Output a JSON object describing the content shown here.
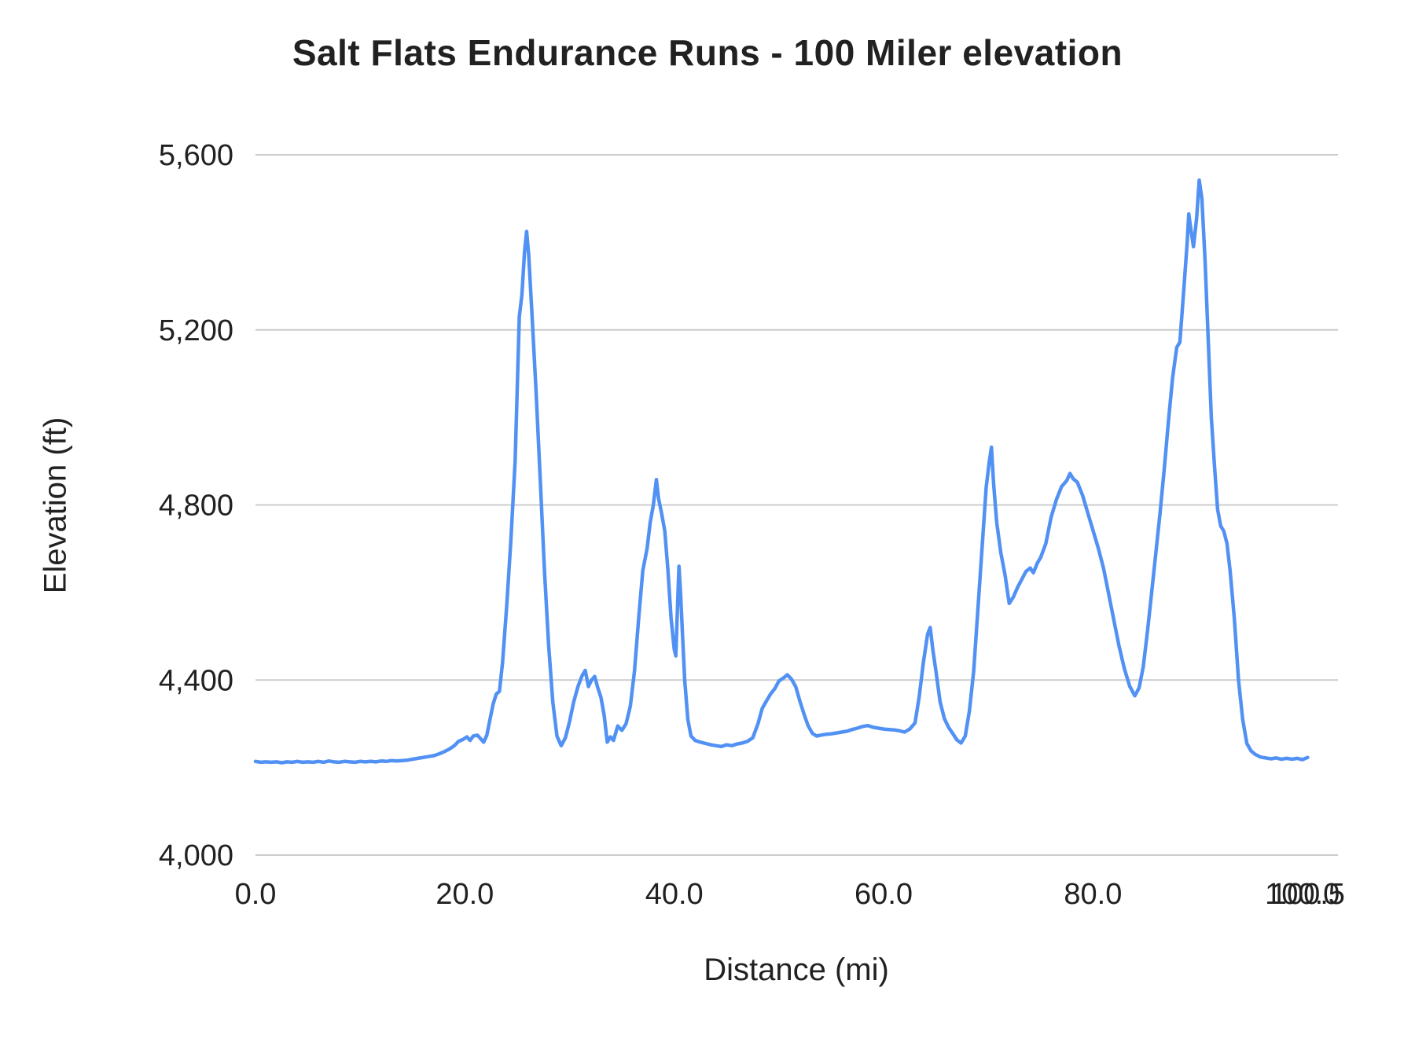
{
  "chart_data": {
    "type": "line",
    "title": "Salt Flats Endurance Runs - 100 Miler elevation",
    "xlabel": "Distance (mi)",
    "ylabel": "Elevation (ft)",
    "xlim": [
      0,
      103.4
    ],
    "ylim": [
      4000,
      5600
    ],
    "grid": "horizontal",
    "legend": "none",
    "line_color": "#5291f4",
    "gridline_color": "#cccccc",
    "text_color": "#212121",
    "x_ticks": [
      {
        "value": 0,
        "label": "0.0"
      },
      {
        "value": 20,
        "label": "20.0"
      },
      {
        "value": 40,
        "label": "40.0"
      },
      {
        "value": 60,
        "label": "60.0"
      },
      {
        "value": 80,
        "label": "80.0"
      },
      {
        "value": 100,
        "label": "100.0"
      },
      {
        "value": 100.5,
        "label": "100.5"
      }
    ],
    "y_ticks": [
      {
        "value": 4000,
        "label": "4,000"
      },
      {
        "value": 4400,
        "label": "4,400"
      },
      {
        "value": 4800,
        "label": "4,800"
      },
      {
        "value": 5200,
        "label": "5,200"
      },
      {
        "value": 5600,
        "label": "5,600"
      }
    ],
    "series": [
      {
        "points": [
          [
            0,
            4214
          ],
          [
            0.5,
            4212
          ],
          [
            1,
            4213
          ],
          [
            1.5,
            4212
          ],
          [
            2,
            4213
          ],
          [
            2.5,
            4211
          ],
          [
            3,
            4213
          ],
          [
            3.5,
            4212
          ],
          [
            4,
            4214
          ],
          [
            4.5,
            4212
          ],
          [
            5,
            4213
          ],
          [
            5.5,
            4212
          ],
          [
            6,
            4214
          ],
          [
            6.5,
            4212
          ],
          [
            7,
            4215
          ],
          [
            7.5,
            4213
          ],
          [
            8,
            4212
          ],
          [
            8.5,
            4214
          ],
          [
            9,
            4213
          ],
          [
            9.5,
            4212
          ],
          [
            10,
            4214
          ],
          [
            10.5,
            4213
          ],
          [
            11,
            4214
          ],
          [
            11.5,
            4213
          ],
          [
            12,
            4215
          ],
          [
            12.5,
            4214
          ],
          [
            13,
            4216
          ],
          [
            13.5,
            4215
          ],
          [
            14,
            4216
          ],
          [
            14.5,
            4217
          ],
          [
            15,
            4219
          ],
          [
            15.5,
            4221
          ],
          [
            16,
            4223
          ],
          [
            16.5,
            4225
          ],
          [
            17,
            4227
          ],
          [
            17.5,
            4231
          ],
          [
            18,
            4236
          ],
          [
            18.5,
            4242
          ],
          [
            19,
            4250
          ],
          [
            19.4,
            4260
          ],
          [
            19.8,
            4264
          ],
          [
            20.2,
            4270
          ],
          [
            20.5,
            4262
          ],
          [
            20.8,
            4272
          ],
          [
            21.2,
            4274
          ],
          [
            21.5,
            4266
          ],
          [
            21.8,
            4258
          ],
          [
            22.1,
            4274
          ],
          [
            22.4,
            4310
          ],
          [
            22.7,
            4345
          ],
          [
            23,
            4368
          ],
          [
            23.3,
            4374
          ],
          [
            23.6,
            4440
          ],
          [
            24,
            4570
          ],
          [
            24.4,
            4720
          ],
          [
            24.8,
            4900
          ],
          [
            25.2,
            5230
          ],
          [
            25.45,
            5280
          ],
          [
            25.7,
            5380
          ],
          [
            25.9,
            5425
          ],
          [
            26.1,
            5370
          ],
          [
            26.4,
            5240
          ],
          [
            26.8,
            5060
          ],
          [
            27.2,
            4860
          ],
          [
            27.6,
            4650
          ],
          [
            28,
            4480
          ],
          [
            28.4,
            4350
          ],
          [
            28.8,
            4272
          ],
          [
            29.2,
            4250
          ],
          [
            29.6,
            4268
          ],
          [
            30,
            4305
          ],
          [
            30.4,
            4350
          ],
          [
            30.8,
            4385
          ],
          [
            31.2,
            4410
          ],
          [
            31.5,
            4422
          ],
          [
            31.8,
            4385
          ],
          [
            32.1,
            4400
          ],
          [
            32.4,
            4408
          ],
          [
            32.7,
            4382
          ],
          [
            33,
            4360
          ],
          [
            33.3,
            4320
          ],
          [
            33.6,
            4258
          ],
          [
            33.9,
            4270
          ],
          [
            34.2,
            4262
          ],
          [
            34.6,
            4295
          ],
          [
            35,
            4285
          ],
          [
            35.4,
            4300
          ],
          [
            35.8,
            4340
          ],
          [
            36.2,
            4420
          ],
          [
            36.6,
            4540
          ],
          [
            37,
            4650
          ],
          [
            37.4,
            4700
          ],
          [
            37.7,
            4760
          ],
          [
            38,
            4800
          ],
          [
            38.3,
            4858
          ],
          [
            38.5,
            4815
          ],
          [
            38.8,
            4780
          ],
          [
            39.1,
            4740
          ],
          [
            39.4,
            4650
          ],
          [
            39.7,
            4540
          ],
          [
            40,
            4470
          ],
          [
            40.15,
            4455
          ],
          [
            40.3,
            4560
          ],
          [
            40.45,
            4660
          ],
          [
            40.6,
            4600
          ],
          [
            40.8,
            4500
          ],
          [
            41,
            4400
          ],
          [
            41.3,
            4310
          ],
          [
            41.6,
            4272
          ],
          [
            42,
            4262
          ],
          [
            42.5,
            4258
          ],
          [
            43,
            4255
          ],
          [
            43.5,
            4252
          ],
          [
            44,
            4250
          ],
          [
            44.5,
            4248
          ],
          [
            45,
            4252
          ],
          [
            45.5,
            4250
          ],
          [
            46,
            4254
          ],
          [
            46.5,
            4256
          ],
          [
            47,
            4260
          ],
          [
            47.5,
            4268
          ],
          [
            48,
            4300
          ],
          [
            48.4,
            4335
          ],
          [
            48.8,
            4352
          ],
          [
            49.2,
            4368
          ],
          [
            49.6,
            4380
          ],
          [
            50,
            4398
          ],
          [
            50.4,
            4404
          ],
          [
            50.8,
            4412
          ],
          [
            51.2,
            4402
          ],
          [
            51.6,
            4385
          ],
          [
            52,
            4352
          ],
          [
            52.4,
            4322
          ],
          [
            52.8,
            4295
          ],
          [
            53.2,
            4278
          ],
          [
            53.6,
            4272
          ],
          [
            54,
            4274
          ],
          [
            54.5,
            4276
          ],
          [
            55,
            4277
          ],
          [
            55.5,
            4279
          ],
          [
            56,
            4281
          ],
          [
            56.5,
            4283
          ],
          [
            57,
            4287
          ],
          [
            57.5,
            4290
          ],
          [
            58,
            4294
          ],
          [
            58.5,
            4296
          ],
          [
            59,
            4292
          ],
          [
            59.5,
            4290
          ],
          [
            60,
            4288
          ],
          [
            60.5,
            4287
          ],
          [
            61,
            4286
          ],
          [
            61.5,
            4284
          ],
          [
            62,
            4281
          ],
          [
            62.5,
            4288
          ],
          [
            63,
            4302
          ],
          [
            63.4,
            4362
          ],
          [
            63.8,
            4440
          ],
          [
            64.2,
            4505
          ],
          [
            64.45,
            4520
          ],
          [
            64.7,
            4470
          ],
          [
            65,
            4420
          ],
          [
            65.4,
            4350
          ],
          [
            65.8,
            4312
          ],
          [
            66.2,
            4292
          ],
          [
            66.6,
            4278
          ],
          [
            67,
            4263
          ],
          [
            67.4,
            4256
          ],
          [
            67.8,
            4272
          ],
          [
            68.2,
            4330
          ],
          [
            68.6,
            4420
          ],
          [
            69,
            4560
          ],
          [
            69.4,
            4700
          ],
          [
            69.8,
            4840
          ],
          [
            70.1,
            4900
          ],
          [
            70.3,
            4932
          ],
          [
            70.5,
            4850
          ],
          [
            70.8,
            4760
          ],
          [
            71.2,
            4690
          ],
          [
            71.6,
            4640
          ],
          [
            72,
            4575
          ],
          [
            72.4,
            4590
          ],
          [
            72.8,
            4612
          ],
          [
            73.2,
            4630
          ],
          [
            73.6,
            4648
          ],
          [
            74,
            4656
          ],
          [
            74.3,
            4645
          ],
          [
            74.7,
            4668
          ],
          [
            75,
            4680
          ],
          [
            75.5,
            4712
          ],
          [
            76,
            4772
          ],
          [
            76.5,
            4812
          ],
          [
            77,
            4842
          ],
          [
            77.5,
            4856
          ],
          [
            77.8,
            4872
          ],
          [
            78.1,
            4860
          ],
          [
            78.5,
            4852
          ],
          [
            79,
            4822
          ],
          [
            79.5,
            4782
          ],
          [
            80,
            4742
          ],
          [
            80.5,
            4702
          ],
          [
            81,
            4656
          ],
          [
            81.5,
            4596
          ],
          [
            82,
            4536
          ],
          [
            82.5,
            4476
          ],
          [
            83,
            4426
          ],
          [
            83.5,
            4386
          ],
          [
            84,
            4364
          ],
          [
            84.4,
            4382
          ],
          [
            84.8,
            4430
          ],
          [
            85.2,
            4510
          ],
          [
            85.6,
            4600
          ],
          [
            86,
            4690
          ],
          [
            86.4,
            4780
          ],
          [
            86.8,
            4880
          ],
          [
            87.2,
            4990
          ],
          [
            87.6,
            5090
          ],
          [
            88,
            5160
          ],
          [
            88.3,
            5172
          ],
          [
            88.7,
            5300
          ],
          [
            89,
            5400
          ],
          [
            89.15,
            5465
          ],
          [
            89.35,
            5430
          ],
          [
            89.6,
            5390
          ],
          [
            89.9,
            5455
          ],
          [
            90.15,
            5542
          ],
          [
            90.4,
            5500
          ],
          [
            90.7,
            5360
          ],
          [
            91,
            5180
          ],
          [
            91.3,
            5000
          ],
          [
            91.6,
            4890
          ],
          [
            91.9,
            4790
          ],
          [
            92.2,
            4752
          ],
          [
            92.5,
            4740
          ],
          [
            92.8,
            4712
          ],
          [
            93.1,
            4650
          ],
          [
            93.5,
            4540
          ],
          [
            93.9,
            4400
          ],
          [
            94.3,
            4310
          ],
          [
            94.7,
            4255
          ],
          [
            95.1,
            4238
          ],
          [
            95.5,
            4230
          ],
          [
            96,
            4224
          ],
          [
            96.5,
            4222
          ],
          [
            97,
            4220
          ],
          [
            97.5,
            4222
          ],
          [
            98,
            4219
          ],
          [
            98.5,
            4221
          ],
          [
            99,
            4219
          ],
          [
            99.5,
            4221
          ],
          [
            100,
            4218
          ],
          [
            100.5,
            4223
          ]
        ]
      }
    ]
  }
}
